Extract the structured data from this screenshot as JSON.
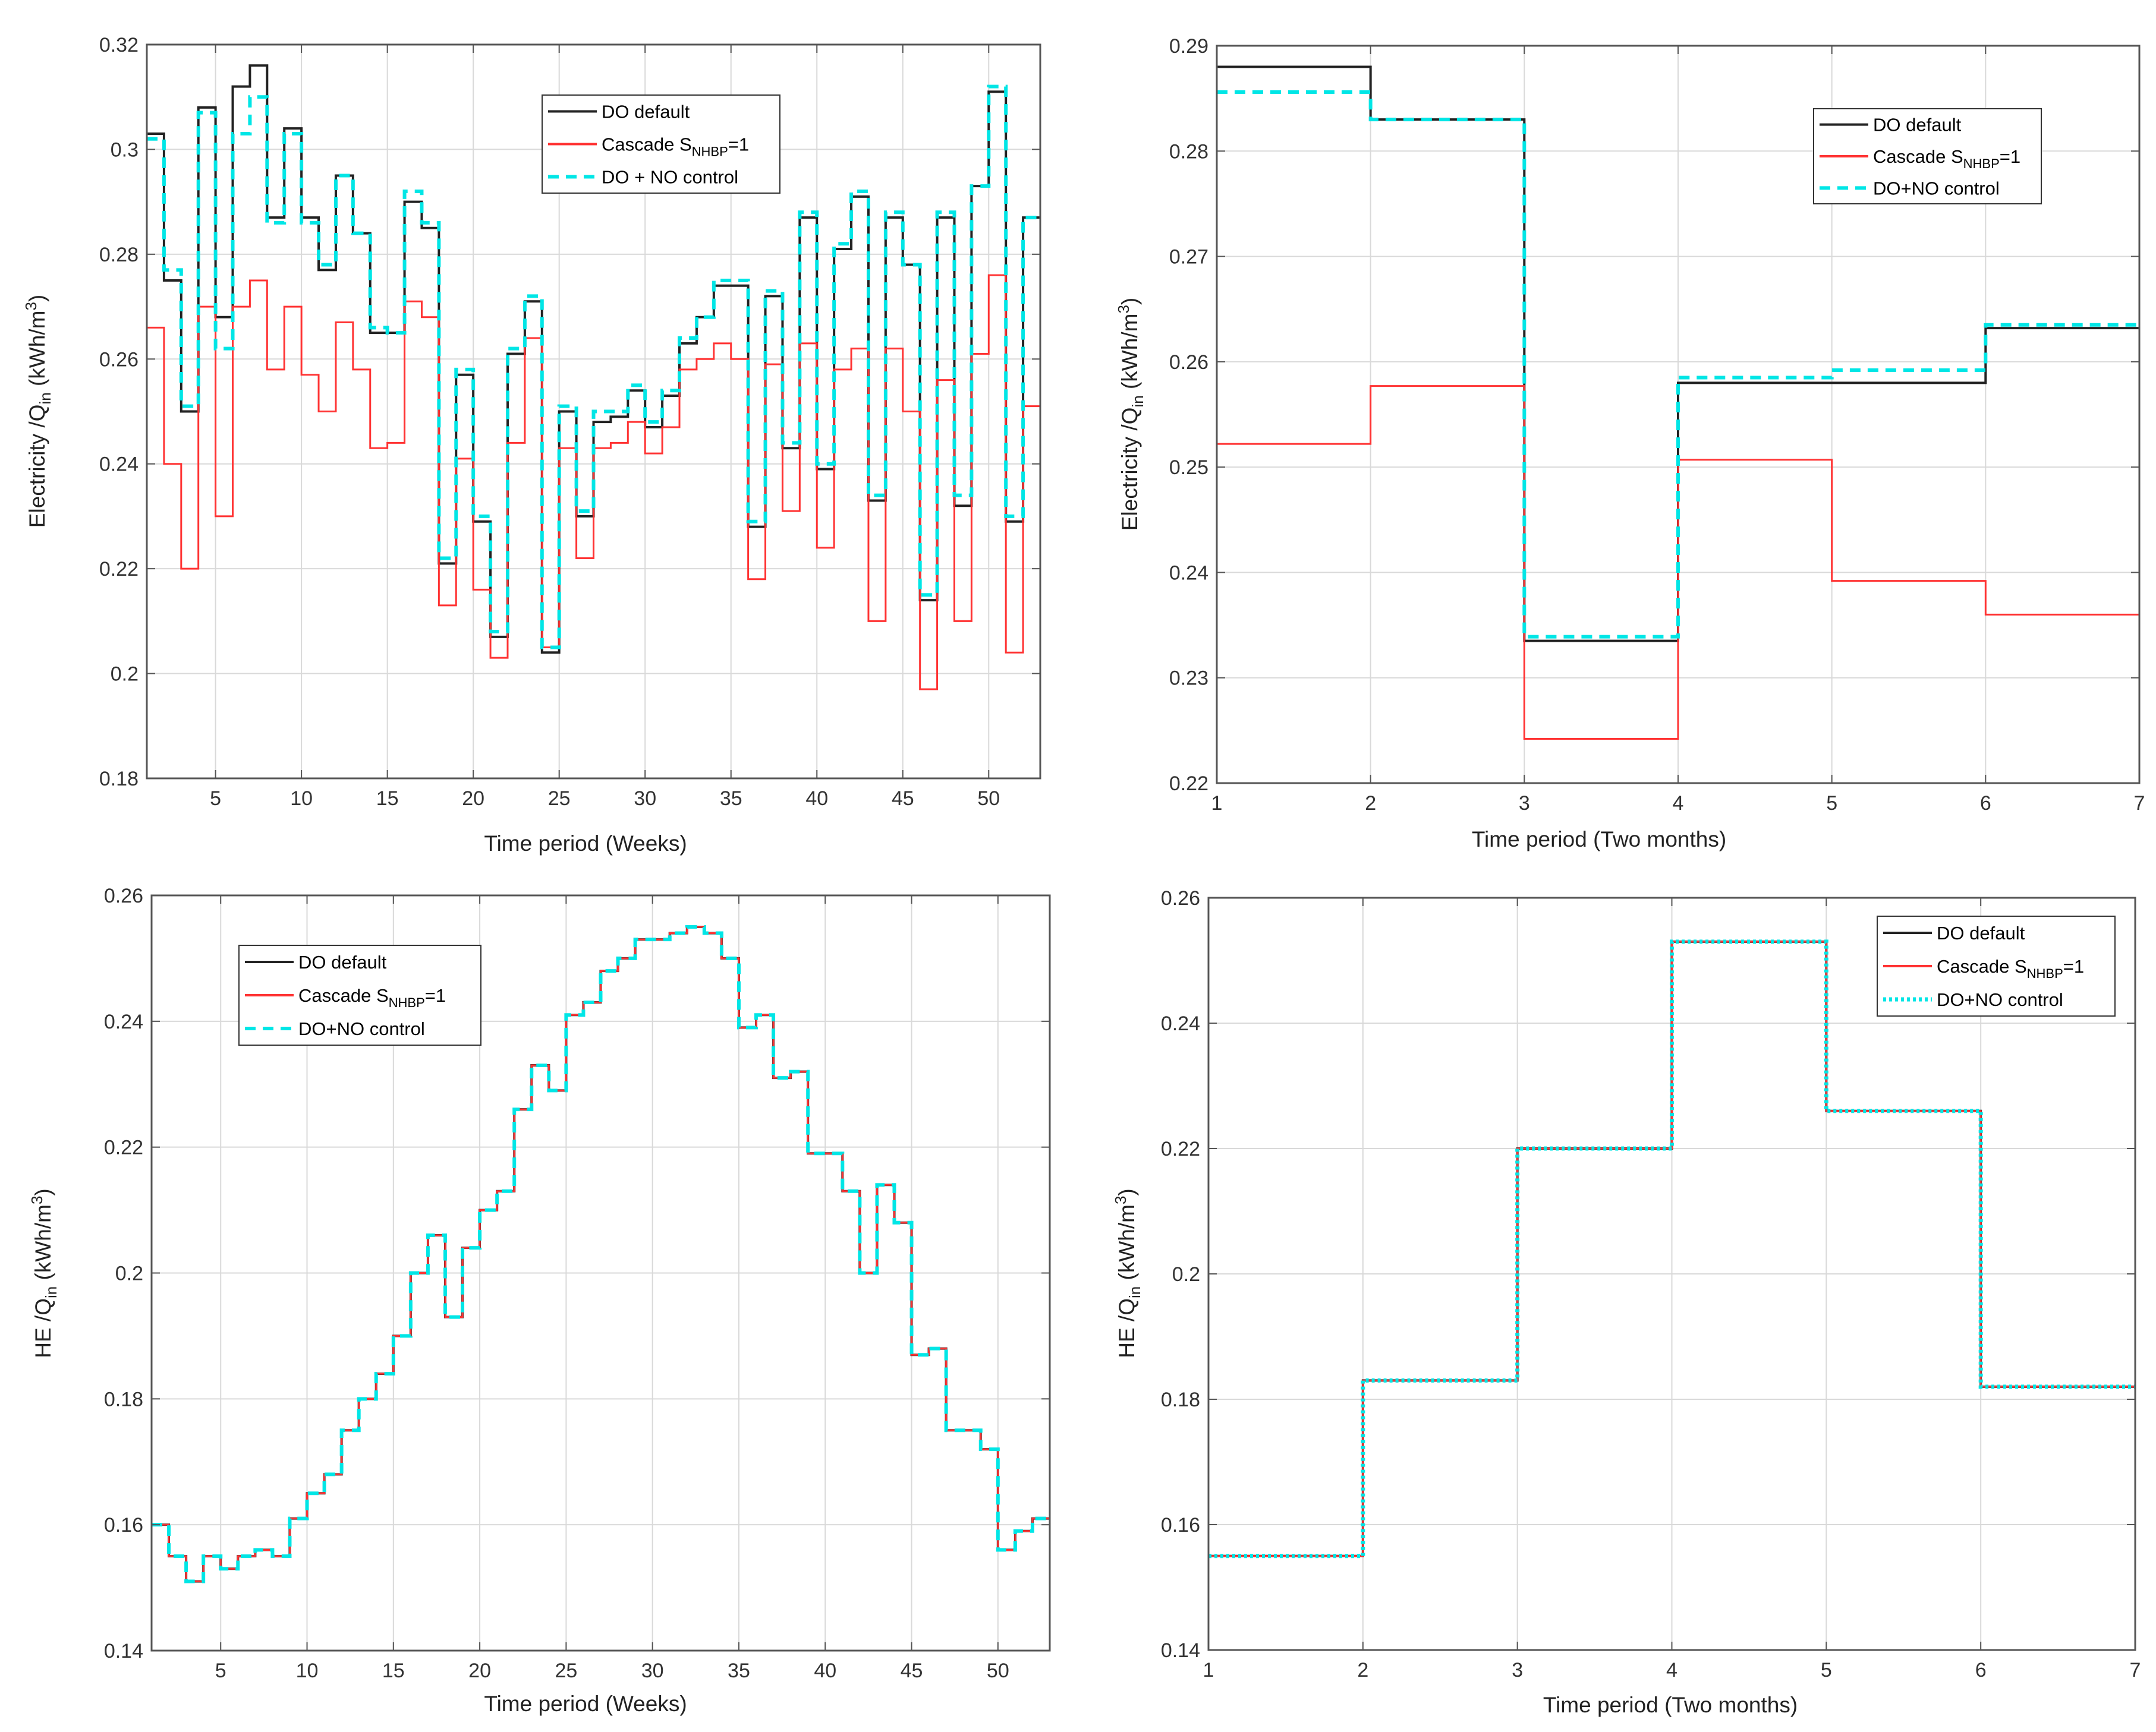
{
  "colors": {
    "do_default": "#222222",
    "cascade": "#ff3333",
    "do_no_control": "#00e6e6",
    "grid": "#d9d9d9",
    "axes": "#555555"
  },
  "chart_data": [
    {
      "type": "line",
      "step": true,
      "xlabel": "Time period (Weeks)",
      "ylabel": "Electricity /Q_in (kWh/m^3)",
      "ylabel_parts": {
        "main": "Electricity /Q",
        "sub": "in",
        "unit": "(kWh/m",
        "sup": "3",
        "close": ")"
      },
      "xlim": [
        1,
        53
      ],
      "ylim": [
        0.18,
        0.32
      ],
      "xticks": [
        5,
        10,
        15,
        20,
        25,
        30,
        35,
        40,
        45,
        50
      ],
      "yticks": [
        0.18,
        0.2,
        0.22,
        0.24,
        0.26,
        0.28,
        0.3,
        0.32
      ],
      "ytick_labels": [
        "0.18",
        "0.2",
        "0.22",
        "0.24",
        "0.26",
        "0.28",
        "0.3",
        "0.32"
      ],
      "grid": true,
      "legend_position": "top-center",
      "legend": [
        {
          "label": "DO default"
        },
        {
          "label": "Cascade S",
          "sub": "NHBP",
          "suffix": "=1"
        },
        {
          "label": "DO + NO control"
        }
      ],
      "x": [
        1,
        2,
        3,
        4,
        5,
        6,
        7,
        8,
        9,
        10,
        11,
        12,
        13,
        14,
        15,
        16,
        17,
        18,
        19,
        20,
        21,
        22,
        23,
        24,
        25,
        26,
        27,
        28,
        29,
        30,
        31,
        32,
        33,
        34,
        35,
        36,
        37,
        38,
        39,
        40,
        41,
        42,
        43,
        44,
        45,
        46,
        47,
        48,
        49,
        50,
        51,
        52,
        53
      ],
      "series": [
        {
          "name": "DO default",
          "color": "do_default",
          "dash": "solid",
          "values": [
            0.303,
            0.275,
            0.25,
            0.308,
            0.268,
            0.312,
            0.316,
            0.287,
            0.304,
            0.287,
            0.277,
            0.295,
            0.284,
            0.265,
            0.265,
            0.29,
            0.285,
            0.221,
            0.257,
            0.229,
            0.207,
            0.261,
            0.271,
            0.204,
            0.25,
            0.23,
            0.248,
            0.249,
            0.254,
            0.247,
            0.253,
            0.263,
            0.268,
            0.274,
            0.274,
            0.228,
            0.272,
            0.243,
            0.287,
            0.239,
            0.281,
            0.291,
            0.233,
            0.287,
            0.278,
            0.214,
            0.287,
            0.232,
            0.293,
            0.311,
            0.229,
            0.287,
            0.287
          ]
        },
        {
          "name": "Cascade S_NHBP=1",
          "color": "cascade",
          "dash": "solid",
          "values": [
            0.266,
            0.24,
            0.22,
            0.27,
            0.23,
            0.27,
            0.275,
            0.258,
            0.27,
            0.257,
            0.25,
            0.267,
            0.258,
            0.243,
            0.244,
            0.271,
            0.268,
            0.213,
            0.241,
            0.216,
            0.203,
            0.244,
            0.264,
            0.205,
            0.243,
            0.222,
            0.243,
            0.244,
            0.248,
            0.242,
            0.247,
            0.258,
            0.26,
            0.263,
            0.26,
            0.218,
            0.259,
            0.231,
            0.263,
            0.224,
            0.258,
            0.262,
            0.21,
            0.262,
            0.25,
            0.197,
            0.256,
            0.21,
            0.261,
            0.276,
            0.204,
            0.251,
            0.251
          ]
        },
        {
          "name": "DO + NO control",
          "color": "do_no_control",
          "dash": "dashed",
          "values": [
            0.302,
            0.277,
            0.251,
            0.307,
            0.262,
            0.303,
            0.31,
            0.286,
            0.303,
            0.286,
            0.278,
            0.295,
            0.284,
            0.266,
            0.265,
            0.292,
            0.286,
            0.222,
            0.258,
            0.23,
            0.208,
            0.262,
            0.272,
            0.205,
            0.251,
            0.231,
            0.25,
            0.25,
            0.255,
            0.248,
            0.254,
            0.264,
            0.268,
            0.275,
            0.275,
            0.229,
            0.273,
            0.244,
            0.288,
            0.24,
            0.282,
            0.292,
            0.234,
            0.288,
            0.278,
            0.215,
            0.288,
            0.234,
            0.293,
            0.312,
            0.23,
            0.287,
            0.287
          ]
        }
      ]
    },
    {
      "type": "line",
      "step": true,
      "xlabel": "Time period (Two months)",
      "ylabel": "Electricity /Q_in (kWh/m^3)",
      "ylabel_parts": {
        "main": "Electricity /Q",
        "sub": "in",
        "unit": "(kWh/m",
        "sup": "3",
        "close": ")"
      },
      "xlim": [
        1,
        7
      ],
      "ylim": [
        0.22,
        0.29
      ],
      "xticks": [
        1,
        2,
        3,
        4,
        5,
        6,
        7
      ],
      "yticks": [
        0.22,
        0.23,
        0.24,
        0.25,
        0.26,
        0.27,
        0.28,
        0.29
      ],
      "ytick_labels": [
        "0.22",
        "0.23",
        "0.24",
        "0.25",
        "0.26",
        "0.27",
        "0.28",
        "0.29"
      ],
      "grid": true,
      "legend_position": "top-right",
      "legend": [
        {
          "label": "DO default"
        },
        {
          "label": "Cascade S",
          "sub": "NHBP",
          "suffix": "=1"
        },
        {
          "label": "DO+NO control"
        }
      ],
      "x": [
        1,
        2,
        3,
        4,
        5,
        6,
        7
      ],
      "series": [
        {
          "name": "DO default",
          "color": "do_default",
          "dash": "solid",
          "values": [
            0.288,
            0.283,
            0.2335,
            0.258,
            0.258,
            0.2632,
            0.2632
          ]
        },
        {
          "name": "Cascade S_NHBP=1",
          "color": "cascade",
          "dash": "solid",
          "values": [
            0.2522,
            0.2577,
            0.2242,
            0.2507,
            0.2392,
            0.236,
            0.236
          ]
        },
        {
          "name": "DO+NO control",
          "color": "do_no_control",
          "dash": "dashed",
          "values": [
            0.2856,
            0.283,
            0.2339,
            0.2585,
            0.2592,
            0.2635,
            0.2635
          ]
        }
      ]
    },
    {
      "type": "line",
      "step": true,
      "xlabel": "Time period (Weeks)",
      "ylabel": "HE /Q_in (kWh/m^3)",
      "ylabel_parts": {
        "main": "HE /Q",
        "sub": "in",
        "unit": "(kWh/m",
        "sup": "3",
        "close": ")"
      },
      "xlim": [
        1,
        53
      ],
      "ylim": [
        0.14,
        0.26
      ],
      "xticks": [
        5,
        10,
        15,
        20,
        25,
        30,
        35,
        40,
        45,
        50
      ],
      "yticks": [
        0.14,
        0.16,
        0.18,
        0.2,
        0.22,
        0.24,
        0.26
      ],
      "ytick_labels": [
        "0.14",
        "0.16",
        "0.18",
        "0.2",
        "0.22",
        "0.24",
        "0.26"
      ],
      "grid": true,
      "legend_position": "top-left",
      "legend": [
        {
          "label": "DO default"
        },
        {
          "label": "Cascade S",
          "sub": "NHBP",
          "suffix": "=1"
        },
        {
          "label": "DO+NO control"
        }
      ],
      "x": [
        1,
        2,
        3,
        4,
        5,
        6,
        7,
        8,
        9,
        10,
        11,
        12,
        13,
        14,
        15,
        16,
        17,
        18,
        19,
        20,
        21,
        22,
        23,
        24,
        25,
        26,
        27,
        28,
        29,
        30,
        31,
        32,
        33,
        34,
        35,
        36,
        37,
        38,
        39,
        40,
        41,
        42,
        43,
        44,
        45,
        46,
        47,
        48,
        49,
        50,
        51,
        52,
        53
      ],
      "series": [
        {
          "name": "DO default",
          "color": "do_default",
          "dash": "solid",
          "values": [
            0.16,
            0.155,
            0.151,
            0.155,
            0.153,
            0.155,
            0.156,
            0.155,
            0.161,
            0.165,
            0.168,
            0.175,
            0.18,
            0.184,
            0.19,
            0.2,
            0.206,
            0.193,
            0.204,
            0.21,
            0.213,
            0.226,
            0.233,
            0.229,
            0.241,
            0.243,
            0.248,
            0.25,
            0.253,
            0.253,
            0.254,
            0.255,
            0.254,
            0.25,
            0.239,
            0.241,
            0.231,
            0.232,
            0.219,
            0.219,
            0.213,
            0.2,
            0.214,
            0.208,
            0.187,
            0.188,
            0.175,
            0.175,
            0.172,
            0.156,
            0.159,
            0.161,
            0.161
          ]
        },
        {
          "name": "Cascade S_NHBP=1",
          "color": "cascade",
          "dash": "solid",
          "values": [
            0.16,
            0.155,
            0.151,
            0.155,
            0.153,
            0.155,
            0.156,
            0.155,
            0.161,
            0.165,
            0.168,
            0.175,
            0.18,
            0.184,
            0.19,
            0.2,
            0.206,
            0.193,
            0.204,
            0.21,
            0.213,
            0.226,
            0.233,
            0.229,
            0.241,
            0.243,
            0.248,
            0.25,
            0.253,
            0.253,
            0.254,
            0.255,
            0.254,
            0.25,
            0.239,
            0.241,
            0.231,
            0.232,
            0.219,
            0.219,
            0.213,
            0.2,
            0.214,
            0.208,
            0.187,
            0.188,
            0.175,
            0.175,
            0.172,
            0.156,
            0.159,
            0.161,
            0.161
          ]
        },
        {
          "name": "DO+NO control",
          "color": "do_no_control",
          "dash": "dashed",
          "values": [
            0.16,
            0.155,
            0.151,
            0.155,
            0.153,
            0.155,
            0.156,
            0.155,
            0.161,
            0.165,
            0.168,
            0.175,
            0.18,
            0.184,
            0.19,
            0.2,
            0.206,
            0.193,
            0.204,
            0.21,
            0.213,
            0.226,
            0.233,
            0.229,
            0.241,
            0.243,
            0.248,
            0.25,
            0.253,
            0.253,
            0.254,
            0.255,
            0.254,
            0.25,
            0.239,
            0.241,
            0.231,
            0.232,
            0.219,
            0.219,
            0.213,
            0.2,
            0.214,
            0.208,
            0.187,
            0.188,
            0.175,
            0.175,
            0.172,
            0.156,
            0.159,
            0.161,
            0.161
          ]
        }
      ]
    },
    {
      "type": "line",
      "step": true,
      "xlabel": "Time period (Two months)",
      "ylabel": "HE /Q_in (kWh/m^3)",
      "ylabel_parts": {
        "main": "HE /Q",
        "sub": "in",
        "unit": "(kWh/m",
        "sup": "3",
        "close": ")"
      },
      "xlim": [
        1,
        7
      ],
      "ylim": [
        0.14,
        0.26
      ],
      "xticks": [
        1,
        2,
        3,
        4,
        5,
        6,
        7
      ],
      "yticks": [
        0.14,
        0.16,
        0.18,
        0.2,
        0.22,
        0.24,
        0.26
      ],
      "ytick_labels": [
        "0.14",
        "0.16",
        "0.18",
        "0.2",
        "0.22",
        "0.24",
        "0.26"
      ],
      "grid": true,
      "legend_position": "top-right",
      "legend": [
        {
          "label": "DO default"
        },
        {
          "label": "Cascade S",
          "sub": "NHBP",
          "suffix": "=1"
        },
        {
          "label": "DO+NO control"
        }
      ],
      "x": [
        1,
        2,
        3,
        4,
        5,
        6,
        7
      ],
      "series": [
        {
          "name": "DO default",
          "color": "do_default",
          "dash": "solid",
          "values": [
            0.155,
            0.183,
            0.22,
            0.253,
            0.226,
            0.182,
            0.182
          ]
        },
        {
          "name": "Cascade S_NHBP=1",
          "color": "cascade",
          "dash": "solid",
          "values": [
            0.155,
            0.183,
            0.22,
            0.253,
            0.226,
            0.182,
            0.182
          ]
        },
        {
          "name": "DO+NO control",
          "color": "do_no_control",
          "dash": "dotted",
          "values": [
            0.155,
            0.183,
            0.22,
            0.253,
            0.226,
            0.182,
            0.182
          ]
        }
      ]
    }
  ]
}
